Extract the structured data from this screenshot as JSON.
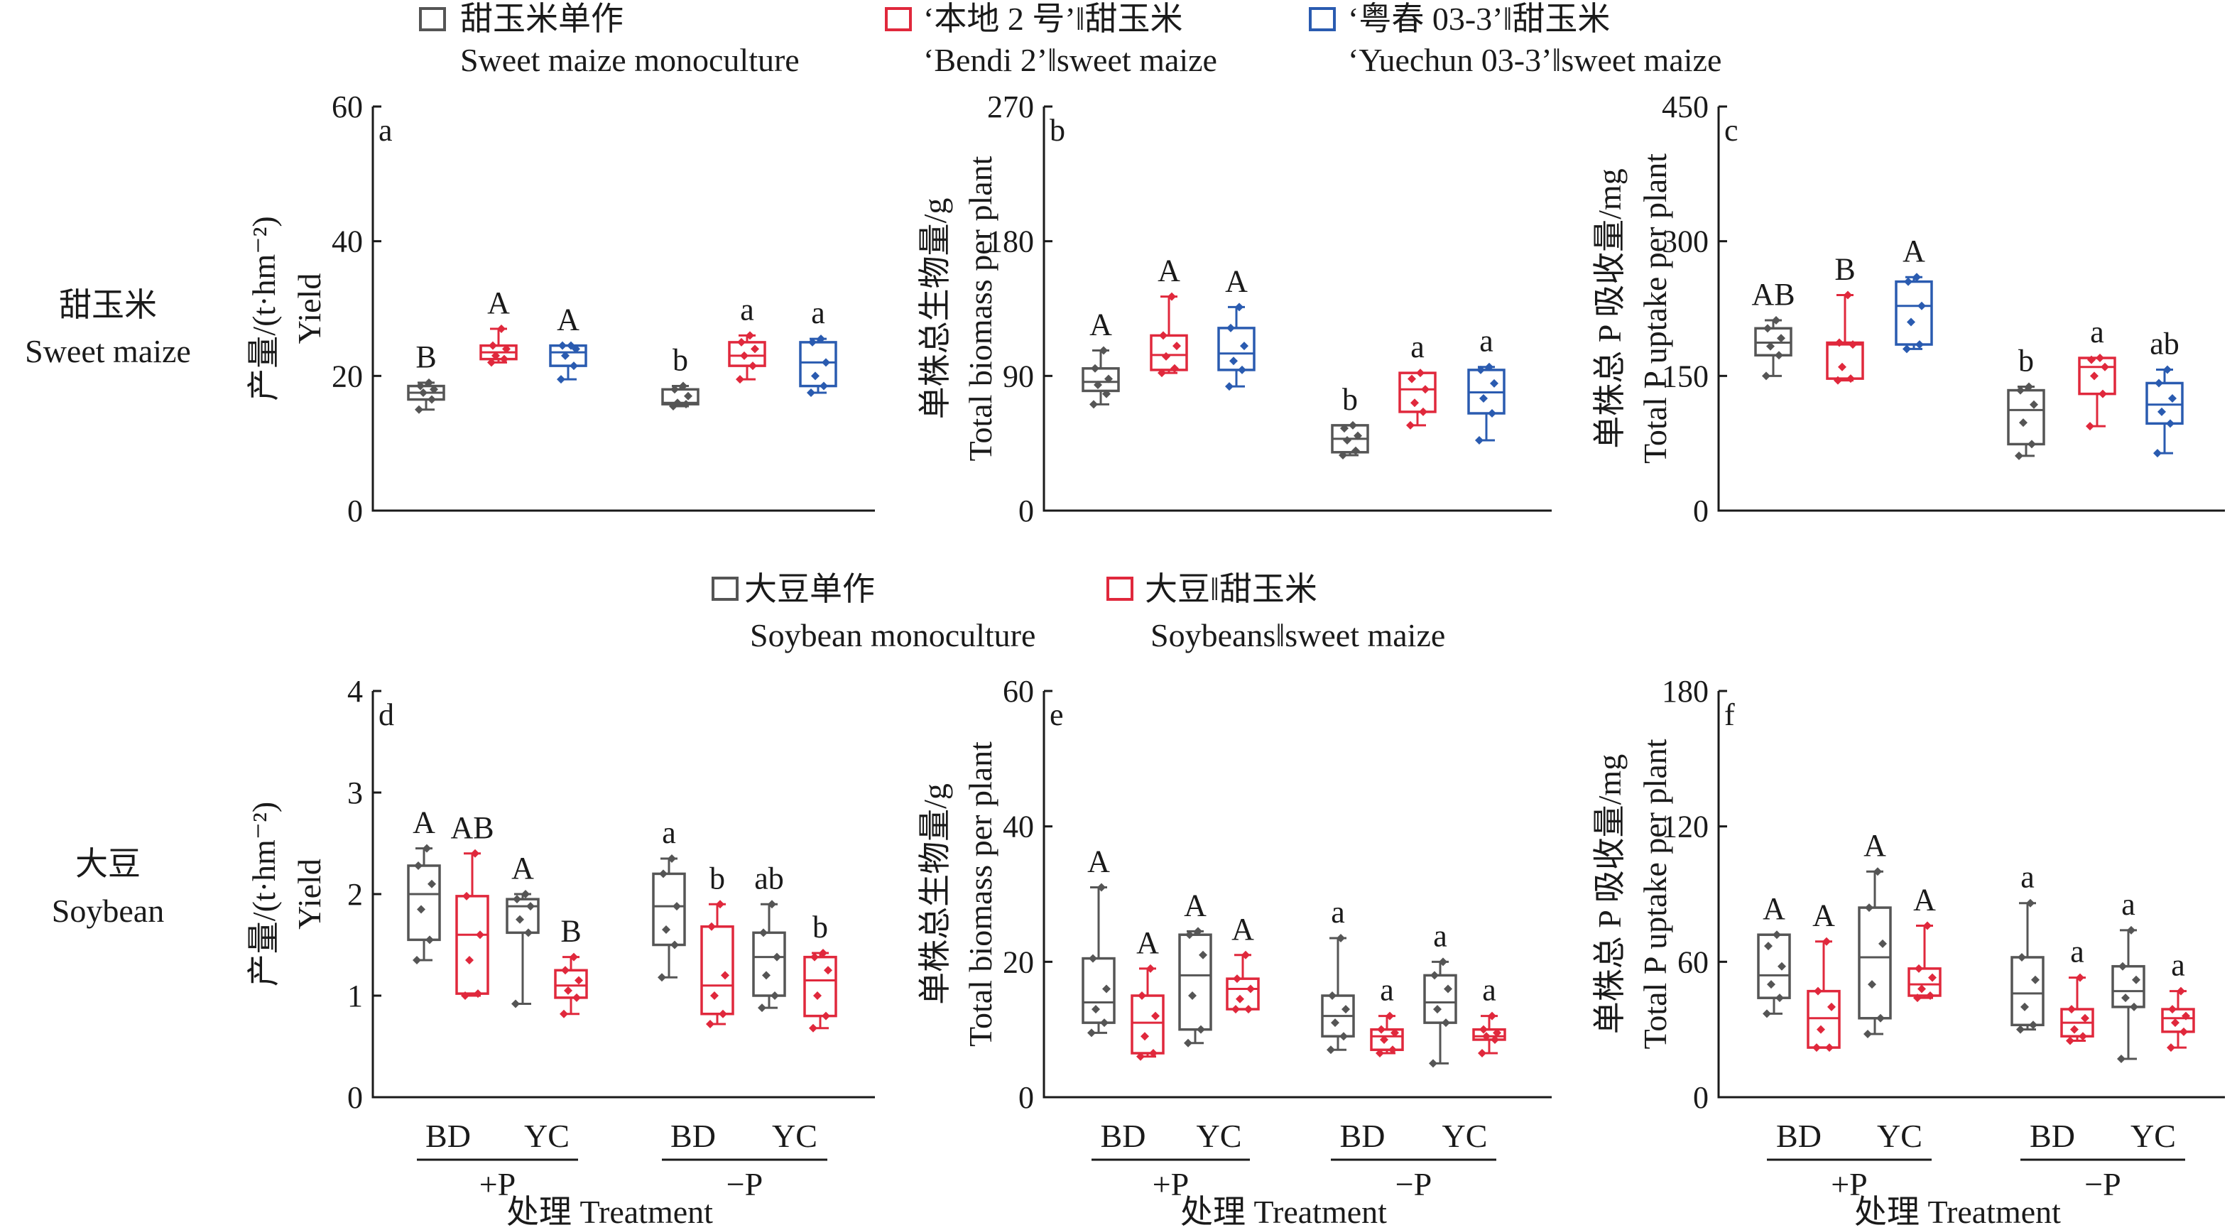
{
  "colors": {
    "gray": "#555555",
    "red": "#e0283c",
    "blue": "#2a5bb0",
    "axis": "#1a1a1a"
  },
  "top_legend": [
    {
      "color": "gray",
      "zh": "甜玉米单作",
      "en": "Sweet maize monoculture"
    },
    {
      "color": "red",
      "zh": "‘本地 2 号’‖甜玉米",
      "en": "‘Bendi 2’‖sweet maize"
    },
    {
      "color": "blue",
      "zh": "‘粤春 03-3’‖甜玉米",
      "en": "‘Yuechun 03-3’‖sweet maize"
    }
  ],
  "bottom_legend": [
    {
      "color": "gray",
      "zh": "大豆单作",
      "en": "Soybean monoculture"
    },
    {
      "color": "red",
      "zh": "大豆‖甜玉米",
      "en": "Soybeans‖sweet maize"
    }
  ],
  "row_labels": [
    {
      "zh": "甜玉米",
      "en": "Sweet maize"
    },
    {
      "zh": "大豆",
      "en": "Soybean"
    }
  ],
  "x_axis": {
    "title": "处理 Treatment",
    "groups": [
      "+P",
      "−P"
    ],
    "subgroups": [
      "BD",
      "YC"
    ]
  },
  "chart_data": [
    {
      "type": "box",
      "panel": "a",
      "ylabel": [
        "产量/(t·hm⁻²)",
        "Yield"
      ],
      "ylim": [
        0,
        60
      ],
      "yticks": [
        0,
        20,
        40,
        60
      ],
      "groups": [
        "+P",
        "−P"
      ],
      "series": [
        {
          "color": "gray",
          "boxes": [
            {
              "min": 15,
              "q1": 16.5,
              "median": 17.5,
              "q3": 18.5,
              "max": 19,
              "points": [
                15,
                16.5,
                17.5,
                18,
                18.5,
                19
              ],
              "letter": "B"
            },
            {
              "min": 15.5,
              "q1": 15.8,
              "median": 16,
              "q3": 18,
              "max": 18.5,
              "points": [
                15.5,
                15.8,
                16,
                17,
                18,
                18.5
              ],
              "letter": "b"
            }
          ]
        },
        {
          "color": "red",
          "boxes": [
            {
              "min": 22,
              "q1": 22.5,
              "median": 23.5,
              "q3": 24.5,
              "max": 27,
              "points": [
                22,
                22.5,
                23,
                24,
                24.5,
                27
              ],
              "letter": "A"
            },
            {
              "min": 19.5,
              "q1": 21.5,
              "median": 23,
              "q3": 25,
              "max": 26,
              "points": [
                19.5,
                21.5,
                23,
                24,
                25,
                26
              ],
              "letter": "a"
            }
          ]
        },
        {
          "color": "blue",
          "boxes": [
            {
              "min": 19.5,
              "q1": 21.5,
              "median": 23.5,
              "q3": 24.5,
              "max": 24.5,
              "points": [
                19.5,
                21.5,
                23,
                24,
                24.5,
                24.5
              ],
              "letter": "A"
            },
            {
              "min": 17.5,
              "q1": 18.5,
              "median": 22,
              "q3": 25,
              "max": 25.5,
              "points": [
                17.5,
                18.5,
                20,
                22,
                25,
                25.5
              ],
              "letter": "a"
            }
          ]
        }
      ]
    },
    {
      "type": "box",
      "panel": "b",
      "ylabel": [
        "单株总生物量/g",
        "Total biomass per plant"
      ],
      "ylim": [
        0,
        270
      ],
      "yticks": [
        0,
        90,
        180,
        270
      ],
      "groups": [
        "+P",
        "−P"
      ],
      "series": [
        {
          "color": "gray",
          "boxes": [
            {
              "min": 71,
              "q1": 80,
              "median": 86,
              "q3": 95,
              "max": 107,
              "points": [
                71,
                78,
                84,
                88,
                95,
                107
              ],
              "letter": "A"
            },
            {
              "min": 37,
              "q1": 39,
              "median": 48,
              "q3": 57,
              "max": 57,
              "points": [
                37,
                40,
                47,
                50,
                55,
                57
              ],
              "letter": "b"
            }
          ]
        },
        {
          "color": "red",
          "boxes": [
            {
              "min": 92,
              "q1": 94,
              "median": 104,
              "q3": 117,
              "max": 143,
              "points": [
                92,
                95,
                103,
                110,
                117,
                143
              ],
              "letter": "A"
            },
            {
              "min": 57,
              "q1": 66,
              "median": 81,
              "q3": 92,
              "max": 92,
              "points": [
                57,
                66,
                72,
                81,
                88,
                92
              ],
              "letter": "a"
            }
          ]
        },
        {
          "color": "blue",
          "boxes": [
            {
              "min": 83,
              "q1": 94,
              "median": 105,
              "q3": 122,
              "max": 136,
              "points": [
                83,
                94,
                100,
                110,
                122,
                136
              ],
              "letter": "A"
            },
            {
              "min": 47,
              "q1": 65,
              "median": 79,
              "q3": 94,
              "max": 96,
              "points": [
                47,
                65,
                75,
                85,
                94,
                96
              ],
              "letter": "a"
            }
          ]
        }
      ]
    },
    {
      "type": "box",
      "panel": "c",
      "ylabel": [
        "单株总 P 吸收量/mg",
        "Total P uptake per plant"
      ],
      "ylim": [
        0,
        450
      ],
      "yticks": [
        0,
        150,
        300,
        450
      ],
      "groups": [
        "+P",
        "−P"
      ],
      "series": [
        {
          "color": "gray",
          "boxes": [
            {
              "min": 150,
              "q1": 173,
              "median": 187,
              "q3": 203,
              "max": 212,
              "points": [
                150,
                173,
                183,
                192,
                203,
                212
              ],
              "letter": "AB"
            },
            {
              "min": 61,
              "q1": 74,
              "median": 112,
              "q3": 134,
              "max": 138,
              "points": [
                61,
                74,
                98,
                118,
                134,
                138
              ],
              "letter": "b"
            }
          ]
        },
        {
          "color": "red",
          "boxes": [
            {
              "min": 145,
              "q1": 147,
              "median": 185,
              "q3": 187,
              "max": 240,
              "points": [
                145,
                147,
                160,
                185,
                187,
                240
              ],
              "letter": "B"
            },
            {
              "min": 94,
              "q1": 130,
              "median": 160,
              "q3": 170,
              "max": 170,
              "points": [
                94,
                130,
                150,
                160,
                168,
                170
              ],
              "letter": "a"
            }
          ]
        },
        {
          "color": "blue",
          "boxes": [
            {
              "min": 180,
              "q1": 185,
              "median": 228,
              "q3": 255,
              "max": 260,
              "points": [
                180,
                185,
                210,
                228,
                255,
                260
              ],
              "letter": "A"
            },
            {
              "min": 64,
              "q1": 97,
              "median": 118,
              "q3": 142,
              "max": 157,
              "points": [
                64,
                97,
                110,
                125,
                142,
                157
              ],
              "letter": "ab"
            }
          ]
        }
      ]
    },
    {
      "type": "box",
      "panel": "d",
      "ylabel": [
        "产量/(t·hm⁻²)",
        "Yield"
      ],
      "ylim": [
        0,
        4
      ],
      "yticks": [
        0,
        1,
        2,
        3,
        4
      ],
      "groups": [
        "+P",
        "−P"
      ],
      "subgroups": [
        "BD",
        "YC"
      ],
      "series": [
        {
          "color": "gray",
          "boxes": [
            {
              "sub": "BD",
              "min": 1.35,
              "q1": 1.55,
              "median": 2.0,
              "q3": 2.28,
              "max": 2.45,
              "points": [
                1.35,
                1.55,
                1.85,
                2.1,
                2.28,
                2.45
              ],
              "letter": "A"
            },
            {
              "sub": "YC",
              "min": 0.92,
              "q1": 1.62,
              "median": 1.88,
              "q3": 1.95,
              "max": 2.0,
              "points": [
                0.92,
                1.62,
                1.75,
                1.88,
                1.95,
                2.0
              ],
              "letter": "A"
            },
            {
              "sub": "BD",
              "min": 1.18,
              "q1": 1.5,
              "median": 1.88,
              "q3": 2.2,
              "max": 2.35,
              "points": [
                1.18,
                1.5,
                1.65,
                1.88,
                2.2,
                2.35
              ],
              "letter": "a"
            },
            {
              "sub": "YC",
              "min": 0.88,
              "q1": 1.0,
              "median": 1.38,
              "q3": 1.62,
              "max": 1.9,
              "points": [
                0.88,
                1.0,
                1.2,
                1.38,
                1.62,
                1.9
              ],
              "letter": "ab"
            }
          ]
        },
        {
          "color": "red",
          "boxes": [
            {
              "sub": "BD",
              "min": 1.0,
              "q1": 1.02,
              "median": 1.6,
              "q3": 1.98,
              "max": 2.4,
              "points": [
                1.0,
                1.02,
                1.35,
                1.6,
                1.98,
                2.4
              ],
              "letter": "AB"
            },
            {
              "sub": "YC",
              "min": 0.82,
              "q1": 0.98,
              "median": 1.1,
              "q3": 1.25,
              "max": 1.38,
              "points": [
                0.82,
                0.98,
                1.05,
                1.15,
                1.25,
                1.38
              ],
              "letter": "B"
            },
            {
              "sub": "BD",
              "min": 0.72,
              "q1": 0.82,
              "median": 1.1,
              "q3": 1.68,
              "max": 1.9,
              "points": [
                0.72,
                0.82,
                1.0,
                1.2,
                1.68,
                1.9
              ],
              "letter": "b"
            },
            {
              "sub": "YC",
              "min": 0.68,
              "q1": 0.8,
              "median": 1.15,
              "q3": 1.38,
              "max": 1.42,
              "points": [
                0.68,
                0.8,
                1.0,
                1.25,
                1.38,
                1.42
              ],
              "letter": "b"
            }
          ]
        }
      ]
    },
    {
      "type": "box",
      "panel": "e",
      "ylabel": [
        "单株总生物量/g",
        "Total biomass per plant"
      ],
      "ylim": [
        0,
        60
      ],
      "yticks": [
        0,
        20,
        40,
        60
      ],
      "groups": [
        "+P",
        "−P"
      ],
      "subgroups": [
        "BD",
        "YC"
      ],
      "series": [
        {
          "color": "gray",
          "boxes": [
            {
              "sub": "BD",
              "min": 9.5,
              "q1": 11,
              "median": 14,
              "q3": 20.5,
              "max": 31,
              "points": [
                9.5,
                11,
                13,
                16,
                20.5,
                31
              ],
              "letter": "A"
            },
            {
              "sub": "YC",
              "min": 8,
              "q1": 10,
              "median": 18,
              "q3": 24,
              "max": 24.5,
              "points": [
                8,
                10,
                15,
                21,
                24,
                24.5
              ],
              "letter": "A"
            },
            {
              "sub": "BD",
              "min": 7,
              "q1": 9,
              "median": 12,
              "q3": 15,
              "max": 23.5,
              "points": [
                7,
                9,
                11,
                13,
                15,
                23.5
              ],
              "letter": "a"
            },
            {
              "sub": "YC",
              "min": 5,
              "q1": 11,
              "median": 14,
              "q3": 18,
              "max": 20,
              "points": [
                5,
                11,
                13,
                16,
                18,
                20
              ],
              "letter": "a"
            }
          ]
        },
        {
          "color": "red",
          "boxes": [
            {
              "sub": "BD",
              "min": 6,
              "q1": 6.5,
              "median": 11,
              "q3": 15,
              "max": 19,
              "points": [
                6,
                6.5,
                9,
                12,
                15,
                19
              ],
              "letter": "A"
            },
            {
              "sub": "YC",
              "min": 13,
              "q1": 13,
              "median": 16,
              "q3": 17.5,
              "max": 21,
              "points": [
                13,
                13,
                14.5,
                16,
                17.5,
                21
              ],
              "letter": "A"
            },
            {
              "sub": "BD",
              "min": 6.5,
              "q1": 7,
              "median": 9,
              "q3": 10,
              "max": 12,
              "points": [
                6.5,
                7,
                8.5,
                9.5,
                10,
                12
              ],
              "letter": "a"
            },
            {
              "sub": "YC",
              "min": 6.5,
              "q1": 8.5,
              "median": 9,
              "q3": 10,
              "max": 12,
              "points": [
                6.5,
                8.5,
                9,
                9.5,
                10,
                12
              ],
              "letter": "a"
            }
          ]
        }
      ]
    },
    {
      "type": "box",
      "panel": "f",
      "ylabel": [
        "单株总 P 吸收量/mg",
        "Total P uptake per plant"
      ],
      "ylim": [
        0,
        180
      ],
      "yticks": [
        0,
        60,
        120,
        180
      ],
      "groups": [
        "+P",
        "−P"
      ],
      "subgroups": [
        "BD",
        "YC"
      ],
      "series": [
        {
          "color": "gray",
          "boxes": [
            {
              "sub": "BD",
              "min": 37,
              "q1": 44,
              "median": 54,
              "q3": 72,
              "max": 72,
              "points": [
                37,
                44,
                50,
                58,
                67,
                72
              ],
              "letter": "A"
            },
            {
              "sub": "YC",
              "min": 28,
              "q1": 35,
              "median": 62,
              "q3": 84,
              "max": 100,
              "points": [
                28,
                35,
                50,
                68,
                84,
                100
              ],
              "letter": "A"
            },
            {
              "sub": "BD",
              "min": 30,
              "q1": 32,
              "median": 46,
              "q3": 62,
              "max": 86,
              "points": [
                30,
                32,
                40,
                52,
                62,
                86
              ],
              "letter": "a"
            },
            {
              "sub": "YC",
              "min": 17,
              "q1": 40,
              "median": 47,
              "q3": 58,
              "max": 74,
              "points": [
                17,
                40,
                44,
                52,
                58,
                74
              ],
              "letter": "a"
            }
          ]
        },
        {
          "color": "red",
          "boxes": [
            {
              "sub": "BD",
              "min": 22,
              "q1": 22,
              "median": 35,
              "q3": 47,
              "max": 69,
              "points": [
                22,
                22,
                30,
                40,
                47,
                69
              ],
              "letter": "A"
            },
            {
              "sub": "YC",
              "min": 44,
              "q1": 45,
              "median": 50,
              "q3": 57,
              "max": 76,
              "points": [
                44,
                45,
                48,
                53,
                57,
                76
              ],
              "letter": "A"
            },
            {
              "sub": "BD",
              "min": 25,
              "q1": 27,
              "median": 33,
              "q3": 39,
              "max": 53,
              "points": [
                25,
                27,
                30,
                35,
                39,
                53
              ],
              "letter": "a"
            },
            {
              "sub": "YC",
              "min": 22,
              "q1": 29,
              "median": 35,
              "q3": 39,
              "max": 47,
              "points": [
                22,
                29,
                33,
                36,
                39,
                47
              ],
              "letter": "a"
            }
          ]
        }
      ]
    }
  ]
}
